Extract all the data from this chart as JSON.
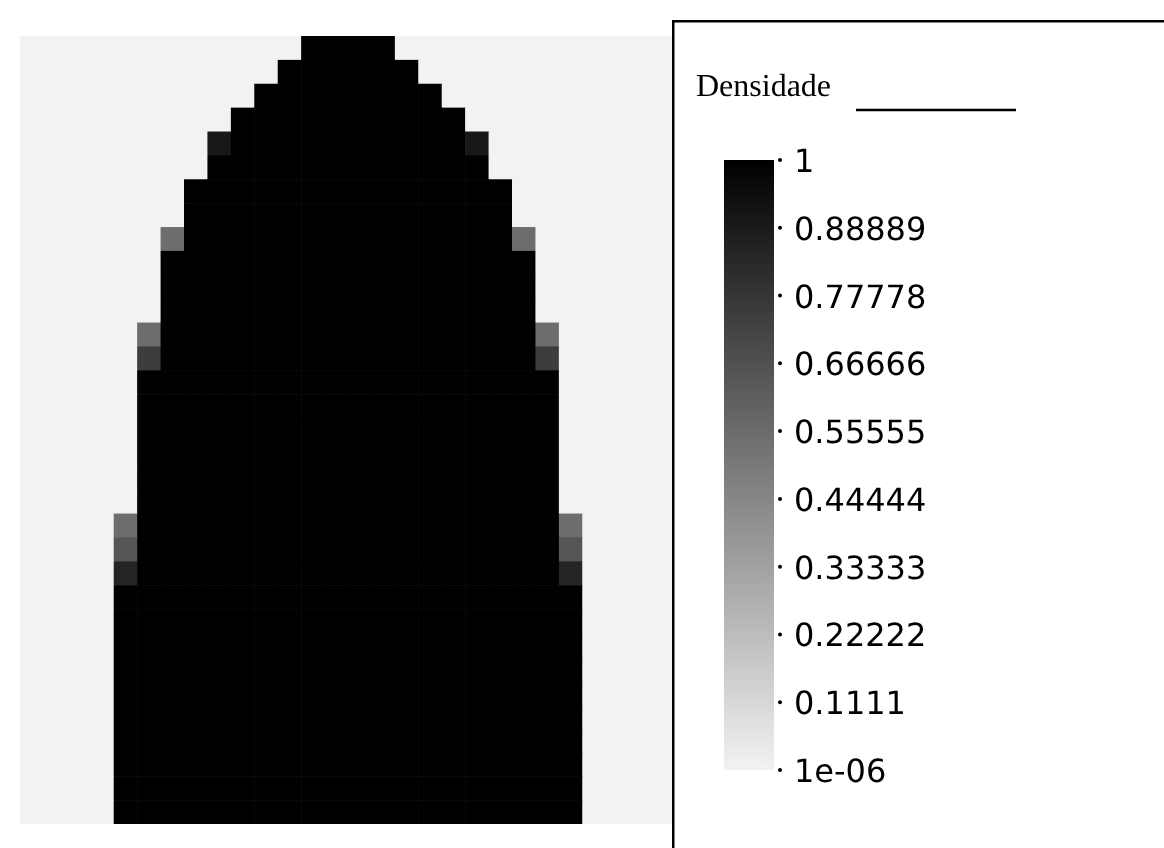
{
  "chart_data": {
    "type": "heatmap",
    "clabel": "Densidade",
    "tick_labels": false,
    "categories": [
      null,
      null,
      null,
      null,
      null,
      null,
      null,
      null,
      null,
      null,
      null,
      null,
      null,
      null,
      null,
      null,
      null,
      null,
      null,
      null,
      null,
      null,
      null,
      null,
      null,
      null,
      null,
      null
    ],
    "y_categories": [
      null,
      null,
      null,
      null,
      null,
      null,
      null,
      null,
      null,
      null,
      null,
      null,
      null,
      null,
      null,
      null,
      null,
      null,
      null,
      null,
      null,
      null,
      null,
      null,
      null,
      null,
      null,
      null,
      null,
      null,
      null,
      null,
      null
    ],
    "cells": [
      [
        1e-06,
        1e-06,
        1e-06,
        1e-06,
        1e-06,
        1e-06,
        1e-06,
        1e-06,
        1e-06,
        1e-06,
        1e-06,
        1e-06,
        1,
        1,
        1,
        1,
        1e-06,
        1e-06,
        1e-06,
        1e-06,
        1e-06,
        1e-06,
        1e-06,
        1e-06,
        1e-06,
        1e-06,
        1e-06,
        1e-06
      ],
      [
        1e-06,
        1e-06,
        1e-06,
        1e-06,
        1e-06,
        1e-06,
        1e-06,
        1e-06,
        1e-06,
        1e-06,
        1e-06,
        1,
        1,
        1,
        1,
        1,
        1,
        1e-06,
        1e-06,
        1e-06,
        1e-06,
        1e-06,
        1e-06,
        1e-06,
        1e-06,
        1e-06,
        1e-06,
        1e-06
      ],
      [
        1e-06,
        1e-06,
        1e-06,
        1e-06,
        1e-06,
        1e-06,
        1e-06,
        1e-06,
        1e-06,
        1e-06,
        1,
        1,
        1,
        1,
        1,
        1,
        1,
        1,
        1e-06,
        1e-06,
        1e-06,
        1e-06,
        1e-06,
        1e-06,
        1e-06,
        1e-06,
        1e-06,
        1e-06
      ],
      [
        1e-06,
        1e-06,
        1e-06,
        1e-06,
        1e-06,
        1e-06,
        1e-06,
        1e-06,
        1e-06,
        1,
        1,
        1,
        1,
        1,
        1,
        1,
        1,
        1,
        1,
        1e-06,
        1e-06,
        1e-06,
        1e-06,
        1e-06,
        1e-06,
        1e-06,
        1e-06,
        1e-06
      ],
      [
        1e-06,
        1e-06,
        1e-06,
        1e-06,
        1e-06,
        1e-06,
        1e-06,
        1e-06,
        0.9,
        1,
        1,
        1,
        1,
        1,
        1,
        1,
        1,
        1,
        1,
        0.9,
        1e-06,
        1e-06,
        1e-06,
        1e-06,
        1e-06,
        1e-06,
        1e-06,
        1e-06
      ],
      [
        1e-06,
        1e-06,
        1e-06,
        1e-06,
        1e-06,
        1e-06,
        1e-06,
        1e-06,
        1,
        1,
        1,
        1,
        1,
        1,
        1,
        1,
        1,
        1,
        1,
        1,
        1e-06,
        1e-06,
        1e-06,
        1e-06,
        1e-06,
        1e-06,
        1e-06,
        1e-06
      ],
      [
        1e-06,
        1e-06,
        1e-06,
        1e-06,
        1e-06,
        1e-06,
        1e-06,
        1,
        1,
        1,
        1,
        1,
        1,
        1,
        1,
        1,
        1,
        1,
        1,
        1,
        1,
        1e-06,
        1e-06,
        1e-06,
        1e-06,
        1e-06,
        1e-06,
        1e-06
      ],
      [
        1e-06,
        1e-06,
        1e-06,
        1e-06,
        1e-06,
        1e-06,
        1e-06,
        1,
        1,
        1,
        1,
        1,
        1,
        1,
        1,
        1,
        1,
        1,
        1,
        1,
        1,
        1e-06,
        1e-06,
        1e-06,
        1e-06,
        1e-06,
        1e-06,
        1e-06
      ],
      [
        1e-06,
        1e-06,
        1e-06,
        1e-06,
        1e-06,
        1e-06,
        0.55,
        1,
        1,
        1,
        1,
        1,
        1,
        1,
        1,
        1,
        1,
        1,
        1,
        1,
        1,
        0.55,
        1e-06,
        1e-06,
        1e-06,
        1e-06,
        1e-06,
        1e-06
      ],
      [
        1e-06,
        1e-06,
        1e-06,
        1e-06,
        1e-06,
        1e-06,
        1,
        1,
        1,
        1,
        1,
        1,
        1,
        1,
        1,
        1,
        1,
        1,
        1,
        1,
        1,
        1,
        1e-06,
        1e-06,
        1e-06,
        1e-06,
        1e-06,
        1e-06
      ],
      [
        1e-06,
        1e-06,
        1e-06,
        1e-06,
        1e-06,
        1e-06,
        1,
        1,
        1,
        1,
        1,
        1,
        1,
        1,
        1,
        1,
        1,
        1,
        1,
        1,
        1,
        1,
        1e-06,
        1e-06,
        1e-06,
        1e-06,
        1e-06,
        1e-06
      ],
      [
        1e-06,
        1e-06,
        1e-06,
        1e-06,
        1e-06,
        1e-06,
        1,
        1,
        1,
        1,
        1,
        1,
        1,
        1,
        1,
        1,
        1,
        1,
        1,
        1,
        1,
        1,
        1e-06,
        1e-06,
        1e-06,
        1e-06,
        1e-06,
        1e-06
      ],
      [
        1e-06,
        1e-06,
        1e-06,
        1e-06,
        1e-06,
        0.55,
        1,
        1,
        1,
        1,
        1,
        1,
        1,
        1,
        1,
        1,
        1,
        1,
        1,
        1,
        1,
        1,
        0.55,
        1e-06,
        1e-06,
        1e-06,
        1e-06,
        1e-06
      ],
      [
        1e-06,
        1e-06,
        1e-06,
        1e-06,
        1e-06,
        0.75,
        1,
        1,
        1,
        1,
        1,
        1,
        1,
        1,
        1,
        1,
        1,
        1,
        1,
        1,
        1,
        1,
        0.75,
        1e-06,
        1e-06,
        1e-06,
        1e-06,
        1e-06
      ],
      [
        1e-06,
        1e-06,
        1e-06,
        1e-06,
        1e-06,
        1,
        1,
        1,
        1,
        1,
        1,
        1,
        1,
        1,
        1,
        1,
        1,
        1,
        1,
        1,
        1,
        1,
        1,
        1e-06,
        1e-06,
        1e-06,
        1e-06,
        1e-06
      ],
      [
        1e-06,
        1e-06,
        1e-06,
        1e-06,
        1e-06,
        1,
        1,
        1,
        1,
        1,
        1,
        1,
        1,
        1,
        1,
        1,
        1,
        1,
        1,
        1,
        1,
        1,
        1,
        1e-06,
        1e-06,
        1e-06,
        1e-06,
        1e-06
      ],
      [
        1e-06,
        1e-06,
        1e-06,
        1e-06,
        1e-06,
        1,
        1,
        1,
        1,
        1,
        1,
        1,
        1,
        1,
        1,
        1,
        1,
        1,
        1,
        1,
        1,
        1,
        1,
        1e-06,
        1e-06,
        1e-06,
        1e-06,
        1e-06
      ],
      [
        1e-06,
        1e-06,
        1e-06,
        1e-06,
        1e-06,
        1,
        1,
        1,
        1,
        1,
        1,
        1,
        1,
        1,
        1,
        1,
        1,
        1,
        1,
        1,
        1,
        1,
        1,
        1e-06,
        1e-06,
        1e-06,
        1e-06,
        1e-06
      ],
      [
        1e-06,
        1e-06,
        1e-06,
        1e-06,
        1e-06,
        1,
        1,
        1,
        1,
        1,
        1,
        1,
        1,
        1,
        1,
        1,
        1,
        1,
        1,
        1,
        1,
        1,
        1,
        1e-06,
        1e-06,
        1e-06,
        1e-06,
        1e-06
      ],
      [
        1e-06,
        1e-06,
        1e-06,
        1e-06,
        1e-06,
        1,
        1,
        1,
        1,
        1,
        1,
        1,
        1,
        1,
        1,
        1,
        1,
        1,
        1,
        1,
        1,
        1,
        1,
        1e-06,
        1e-06,
        1e-06,
        1e-06,
        1e-06
      ],
      [
        1e-06,
        1e-06,
        1e-06,
        1e-06,
        0.55,
        1,
        1,
        1,
        1,
        1,
        1,
        1,
        1,
        1,
        1,
        1,
        1,
        1,
        1,
        1,
        1,
        1,
        1,
        0.55,
        1e-06,
        1e-06,
        1e-06,
        1e-06
      ],
      [
        1e-06,
        1e-06,
        1e-06,
        1e-06,
        0.65,
        1,
        1,
        1,
        1,
        1,
        1,
        1,
        1,
        1,
        1,
        1,
        1,
        1,
        1,
        1,
        1,
        1,
        1,
        0.65,
        1e-06,
        1e-06,
        1e-06,
        1e-06
      ],
      [
        1e-06,
        1e-06,
        1e-06,
        1e-06,
        0.85,
        1,
        1,
        1,
        1,
        1,
        1,
        1,
        1,
        1,
        1,
        1,
        1,
        1,
        1,
        1,
        1,
        1,
        1,
        0.85,
        1e-06,
        1e-06,
        1e-06,
        1e-06
      ],
      [
        1e-06,
        1e-06,
        1e-06,
        1e-06,
        1,
        1,
        1,
        1,
        1,
        1,
        1,
        1,
        1,
        1,
        1,
        1,
        1,
        1,
        1,
        1,
        1,
        1,
        1,
        1,
        1e-06,
        1e-06,
        1e-06,
        1e-06
      ],
      [
        1e-06,
        1e-06,
        1e-06,
        1e-06,
        1,
        1,
        1,
        1,
        1,
        1,
        1,
        1,
        1,
        1,
        1,
        1,
        1,
        1,
        1,
        1,
        1,
        1,
        1,
        1,
        1e-06,
        1e-06,
        1e-06,
        1e-06
      ],
      [
        1e-06,
        1e-06,
        1e-06,
        1e-06,
        1,
        1,
        1,
        1,
        1,
        1,
        1,
        1,
        1,
        1,
        1,
        1,
        1,
        1,
        1,
        1,
        1,
        1,
        1,
        1,
        1e-06,
        1e-06,
        1e-06,
        1e-06
      ],
      [
        1e-06,
        1e-06,
        1e-06,
        1e-06,
        1,
        1,
        1,
        1,
        1,
        1,
        1,
        1,
        1,
        1,
        1,
        1,
        1,
        1,
        1,
        1,
        1,
        1,
        1,
        1,
        1e-06,
        1e-06,
        1e-06,
        1e-06
      ],
      [
        1e-06,
        1e-06,
        1e-06,
        1e-06,
        1,
        1,
        1,
        1,
        1,
        1,
        1,
        1,
        1,
        1,
        1,
        1,
        1,
        1,
        1,
        1,
        1,
        1,
        1,
        1,
        1e-06,
        1e-06,
        1e-06,
        1e-06
      ],
      [
        1e-06,
        1e-06,
        1e-06,
        1e-06,
        1,
        1,
        1,
        1,
        1,
        1,
        1,
        1,
        1,
        1,
        1,
        1,
        1,
        1,
        1,
        1,
        1,
        1,
        1,
        1,
        1e-06,
        1e-06,
        1e-06,
        1e-06
      ],
      [
        1e-06,
        1e-06,
        1e-06,
        1e-06,
        1,
        1,
        1,
        1,
        1,
        1,
        1,
        1,
        1,
        1,
        1,
        1,
        1,
        1,
        1,
        1,
        1,
        1,
        1,
        1,
        1e-06,
        1e-06,
        1e-06,
        1e-06
      ],
      [
        1e-06,
        1e-06,
        1e-06,
        1e-06,
        1,
        1,
        1,
        1,
        1,
        1,
        1,
        1,
        1,
        1,
        1,
        1,
        1,
        1,
        1,
        1,
        1,
        1,
        1,
        1,
        1e-06,
        1e-06,
        1e-06,
        1e-06
      ],
      [
        1e-06,
        1e-06,
        1e-06,
        1e-06,
        1,
        1,
        1,
        1,
        1,
        1,
        1,
        1,
        1,
        1,
        1,
        1,
        1,
        1,
        1,
        1,
        1,
        1,
        1,
        1,
        1e-06,
        1e-06,
        1e-06,
        1e-06
      ],
      [
        1e-06,
        1e-06,
        1e-06,
        1e-06,
        1,
        1,
        1,
        1,
        1,
        1,
        1,
        1,
        1,
        1,
        1,
        1,
        1,
        1,
        1,
        1,
        1,
        1,
        1,
        1,
        1e-06,
        1e-06,
        1e-06,
        1e-06
      ]
    ],
    "clim": [
      1e-06,
      1
    ],
    "cticks": [
      {
        "value": 1e-06,
        "label": "1e-06"
      },
      0.1111,
      0.22222,
      0.33333,
      0.44444,
      0.55555,
      0.66666,
      0.77778,
      0.88889,
      1
    ]
  }
}
